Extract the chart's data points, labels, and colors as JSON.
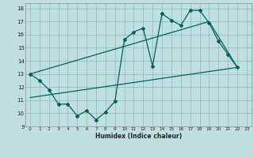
{
  "xlabel": "Humidex (Indice chaleur)",
  "bg_color": "#c0e0e0",
  "grid_color": "#90c0c0",
  "line_color": "#006060",
  "xlim": [
    -0.5,
    23.5
  ],
  "ylim": [
    9,
    18.4
  ],
  "xticks": [
    0,
    1,
    2,
    3,
    4,
    5,
    6,
    7,
    8,
    9,
    10,
    11,
    12,
    13,
    14,
    15,
    16,
    17,
    18,
    19,
    20,
    21,
    22,
    23
  ],
  "yticks": [
    9,
    10,
    11,
    12,
    13,
    14,
    15,
    16,
    17,
    18
  ],
  "curve_x": [
    0,
    1,
    2,
    3,
    4,
    5,
    6,
    7,
    8,
    9,
    10,
    11,
    12,
    13,
    14,
    15,
    16,
    17,
    18,
    19,
    20,
    21,
    22
  ],
  "curve_y": [
    13.0,
    12.5,
    11.8,
    10.7,
    10.7,
    9.8,
    10.2,
    9.5,
    10.1,
    10.9,
    15.6,
    16.2,
    16.5,
    13.6,
    17.6,
    17.1,
    16.7,
    17.85,
    17.85,
    16.9,
    15.5,
    14.5,
    13.5
  ],
  "trend1_x": [
    0,
    19,
    22
  ],
  "trend1_y": [
    13.0,
    17.0,
    13.5
  ],
  "trend2_x": [
    0,
    22
  ],
  "trend2_y": [
    11.2,
    13.5
  ],
  "marker_size": 2.0
}
